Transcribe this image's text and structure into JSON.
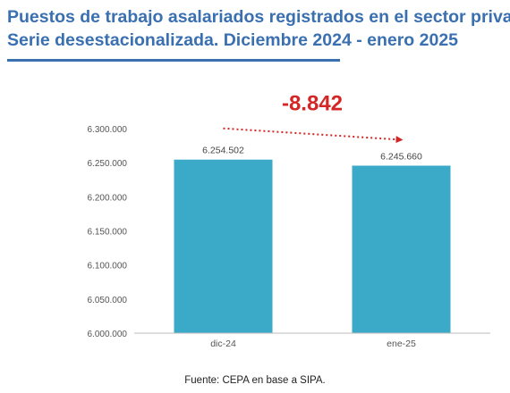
{
  "title_line1": "Puestos de trabajo asalariados registrados en el sector privado",
  "title_line2": "Serie desestacionalizada. Diciembre 2024 - enero 2025",
  "source": "Fuente: CEPA en base a SIPA.",
  "colors": {
    "title": "#3a6fb0",
    "bar": "#3aaac8",
    "arrow": "#d42626",
    "axis": "#bdbdbd"
  },
  "chart_data": {
    "type": "bar",
    "categories": [
      "dic-24",
      "ene-25"
    ],
    "values": [
      6254502,
      6245660
    ],
    "value_labels": [
      "6.254.502",
      "6.245.660"
    ],
    "ylim": [
      6000000,
      6300000
    ],
    "yticks": [
      6000000,
      6050000,
      6100000,
      6150000,
      6200000,
      6250000,
      6300000
    ],
    "ytick_labels": [
      "6.000.000",
      "6.050.000",
      "6.100.000",
      "6.150.000",
      "6.200.000",
      "6.250.000",
      "6.300.000"
    ],
    "annotation": "-8.842",
    "grid": false,
    "xlabel": "",
    "ylabel": ""
  }
}
